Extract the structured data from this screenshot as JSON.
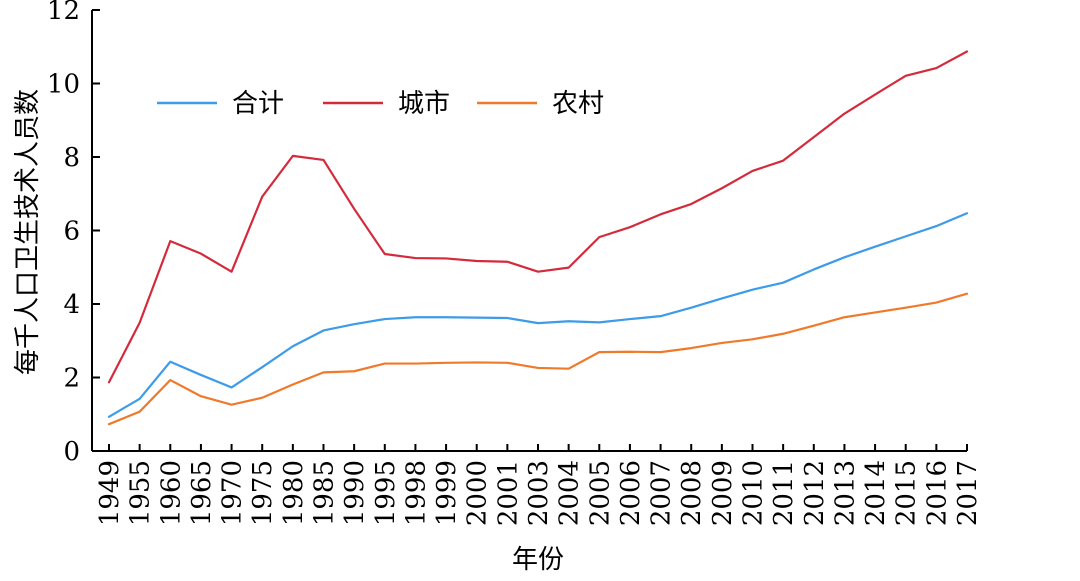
{
  "chart_data": {
    "type": "line",
    "title": "",
    "xlabel": "年份",
    "ylabel": "每千人口卫生技术人员数",
    "ylim": [
      0,
      12
    ],
    "yticks": [
      0,
      2,
      4,
      6,
      8,
      10,
      12
    ],
    "grid": false,
    "legend_position": "top-left",
    "categories": [
      "1949",
      "1955",
      "1960",
      "1965",
      "1970",
      "1975",
      "1980",
      "1985",
      "1990",
      "1995",
      "1998",
      "1999",
      "2000",
      "2001",
      "2003",
      "2004",
      "2005",
      "2006",
      "2007",
      "2008",
      "2009",
      "2010",
      "2011",
      "2012",
      "2013",
      "2014",
      "2015",
      "2016",
      "2017"
    ],
    "series": [
      {
        "name": "合计",
        "color": "#3d9be9",
        "values": [
          0.93,
          1.42,
          2.43,
          2.07,
          1.73,
          2.28,
          2.85,
          3.28,
          3.45,
          3.59,
          3.64,
          3.64,
          3.63,
          3.62,
          3.48,
          3.53,
          3.5,
          3.59,
          3.67,
          3.9,
          4.15,
          4.39,
          4.58,
          4.94,
          5.27,
          5.56,
          5.84,
          6.12,
          6.47
        ]
      },
      {
        "name": "城市",
        "color": "#d42b3c",
        "values": [
          1.87,
          3.49,
          5.71,
          5.37,
          4.88,
          6.92,
          8.03,
          7.92,
          6.59,
          5.36,
          5.25,
          5.24,
          5.17,
          5.15,
          4.88,
          4.99,
          5.82,
          6.09,
          6.44,
          6.72,
          7.15,
          7.62,
          7.9,
          8.54,
          9.18,
          9.7,
          10.21,
          10.42,
          10.87
        ]
      },
      {
        "name": "农村",
        "color": "#f07a2b",
        "values": [
          0.73,
          1.07,
          1.93,
          1.49,
          1.26,
          1.45,
          1.81,
          2.14,
          2.17,
          2.38,
          2.38,
          2.4,
          2.41,
          2.4,
          2.26,
          2.24,
          2.69,
          2.7,
          2.69,
          2.8,
          2.94,
          3.04,
          3.19,
          3.41,
          3.64,
          3.77,
          3.9,
          4.04,
          4.28
        ]
      }
    ]
  }
}
